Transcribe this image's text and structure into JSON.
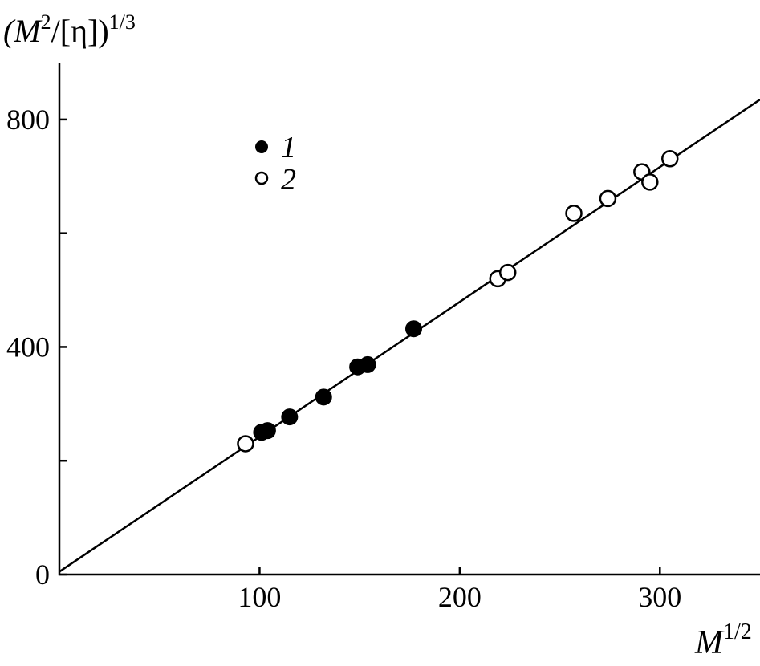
{
  "chart_data": {
    "type": "scatter",
    "title": "",
    "ylabel_parts": {
      "base": "(M",
      "sup1": "2",
      "mid": "/[η])",
      "sup2": "1/3"
    },
    "xlabel_parts": {
      "base": "M",
      "sup": "1/2"
    },
    "xlim": [
      0,
      350
    ],
    "ylim": [
      0,
      900
    ],
    "x_ticks": [
      {
        "value": 100,
        "label": "100"
      },
      {
        "value": 200,
        "label": "200"
      },
      {
        "value": 300,
        "label": "300"
      }
    ],
    "y_ticks": [
      {
        "value": 0,
        "label": "0"
      },
      {
        "value": 200,
        "label": ""
      },
      {
        "value": 400,
        "label": "400"
      },
      {
        "value": 600,
        "label": ""
      },
      {
        "value": 800,
        "label": "800"
      }
    ],
    "grid": false,
    "legend_position": "top-left",
    "series": [
      {
        "name": "1",
        "marker": "filled-circle",
        "points": [
          {
            "x": 101,
            "y": 250
          },
          {
            "x": 104,
            "y": 253
          },
          {
            "x": 115,
            "y": 277
          },
          {
            "x": 132,
            "y": 312
          },
          {
            "x": 149,
            "y": 365
          },
          {
            "x": 154,
            "y": 369
          },
          {
            "x": 177,
            "y": 432
          }
        ]
      },
      {
        "name": "2",
        "marker": "open-circle",
        "points": [
          {
            "x": 93,
            "y": 230
          },
          {
            "x": 219,
            "y": 520
          },
          {
            "x": 224,
            "y": 531
          },
          {
            "x": 257,
            "y": 635
          },
          {
            "x": 274,
            "y": 661
          },
          {
            "x": 291,
            "y": 708
          },
          {
            "x": 295,
            "y": 690
          },
          {
            "x": 305,
            "y": 731
          }
        ]
      }
    ],
    "fit_line": {
      "x": [
        0,
        350
      ],
      "y": [
        5,
        835
      ]
    }
  }
}
